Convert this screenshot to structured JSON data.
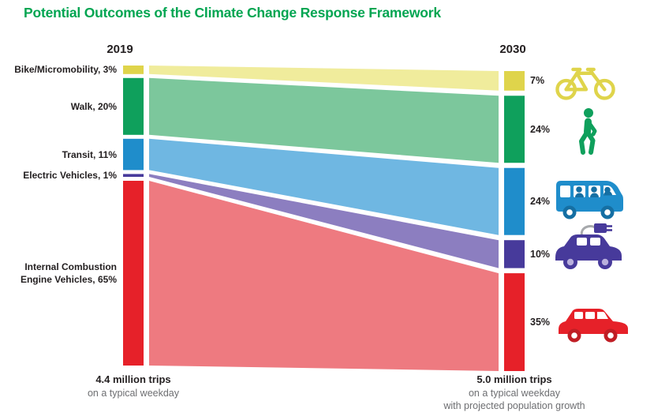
{
  "title": "Potential Outcomes of the Climate Change Response Framework",
  "accent_color": "#00A551",
  "chart_data": {
    "type": "sankey",
    "title": "Potential Outcomes of the Climate Change Response Framework",
    "columns": [
      {
        "year": "2019",
        "total": "4.4 million trips",
        "note_lines": [
          "on a typical weekday"
        ]
      },
      {
        "year": "2030",
        "total": "5.0 million trips",
        "note_lines": [
          "on a typical weekday",
          "with projected population growth"
        ]
      }
    ],
    "categories": [
      {
        "name": "bike-micromobility",
        "left_label": "Bike/Micromobility, 3%",
        "pct_2019": 3,
        "pct_2030": 7,
        "right_label": "7%",
        "color": "#DFD44B",
        "color_light": "#F0EC9C",
        "icon": "bicycle-icon"
      },
      {
        "name": "walk",
        "left_label": "Walk, 20%",
        "pct_2019": 20,
        "pct_2030": 24,
        "right_label": "24%",
        "color": "#0FA05C",
        "color_light": "#7CC79C",
        "icon": "pedestrian-icon"
      },
      {
        "name": "transit",
        "left_label": "Transit, 11%",
        "pct_2019": 11,
        "pct_2030": 24,
        "right_label": "24%",
        "color": "#1F8DCB",
        "color_light": "#6FB7E2",
        "icon": "bus-icon"
      },
      {
        "name": "electric-vehicles",
        "left_label": "Electric Vehicles, 1%",
        "pct_2019": 1,
        "pct_2030": 10,
        "right_label": "10%",
        "color": "#473A9B",
        "color_light": "#8C7EC0",
        "icon": "electric-car-icon"
      },
      {
        "name": "ice-vehicles",
        "left_label": "Internal Combustion Engine Vehicles, 65%",
        "pct_2019": 65,
        "pct_2030": 35,
        "right_label": "35%",
        "color": "#E62129",
        "color_light": "#EE7A80",
        "icon": "car-icon"
      }
    ]
  }
}
